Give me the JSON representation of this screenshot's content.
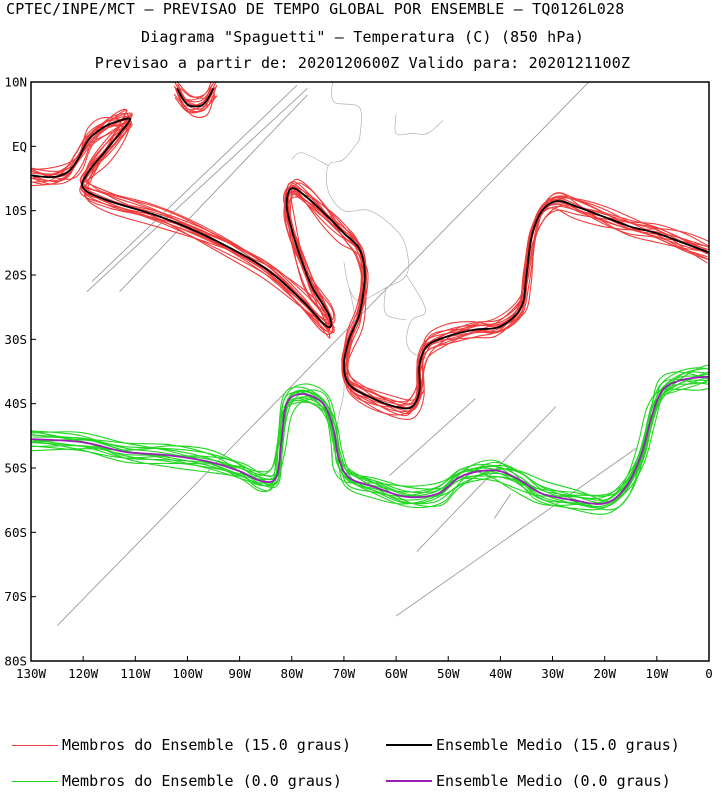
{
  "titles": {
    "line1": "CPTEC/INPE/MCT – PREVISAO DE TEMPO GLOBAL POR ENSEMBLE – TQ0126L028",
    "line2": "Diagrama \"Spaguetti\" – Temperatura (C) (850 hPa)",
    "line3": "Previsao a partir de: 2020120600Z  Valido para: 2020121100Z"
  },
  "colors": {
    "member_15": "#f03c3c",
    "mean_15": "#000000",
    "member_0": "#22d622",
    "mean_0": "#9a1fb8",
    "coast": "#9a9a9a"
  },
  "chart_data": {
    "type": "line",
    "title": "Diagrama \"Spaguetti\" – Temperatura (C) (850 hPa)",
    "xlim": [
      -130,
      0
    ],
    "ylim": [
      -80,
      10
    ],
    "x_ticks": [
      {
        "value": -130,
        "label": "130W"
      },
      {
        "value": -120,
        "label": "120W"
      },
      {
        "value": -110,
        "label": "110W"
      },
      {
        "value": -100,
        "label": "100W"
      },
      {
        "value": -90,
        "label": "90W"
      },
      {
        "value": -80,
        "label": "80W"
      },
      {
        "value": -70,
        "label": "70W"
      },
      {
        "value": -60,
        "label": "60W"
      },
      {
        "value": -50,
        "label": "50W"
      },
      {
        "value": -40,
        "label": "40W"
      },
      {
        "value": -30,
        "label": "30W"
      },
      {
        "value": -20,
        "label": "20W"
      },
      {
        "value": -10,
        "label": "10W"
      },
      {
        "value": 0,
        "label": "0"
      }
    ],
    "y_ticks": [
      {
        "value": 10,
        "label": "10N"
      },
      {
        "value": 0,
        "label": "EQ"
      },
      {
        "value": -10,
        "label": "10S"
      },
      {
        "value": -20,
        "label": "20S"
      },
      {
        "value": -30,
        "label": "30S"
      },
      {
        "value": -40,
        "label": "40S"
      },
      {
        "value": -50,
        "label": "50S"
      },
      {
        "value": -60,
        "label": "60S"
      },
      {
        "value": -70,
        "label": "70S"
      },
      {
        "value": -80,
        "label": "80S"
      }
    ],
    "series": [
      {
        "name": "Ensemble Medio (15.0 graus)",
        "style": "mean_15",
        "segments": [
          [
            [
              -130,
              -4.5
            ],
            [
              -126,
              -4.8
            ],
            [
              -123,
              -4
            ],
            [
              -121,
              -2
            ],
            [
              -119,
              1
            ],
            [
              -116,
              3
            ],
            [
              -113,
              4
            ],
            [
              -111,
              4.2
            ],
            [
              -113,
              2
            ],
            [
              -116,
              -1
            ],
            [
              -119,
              -4
            ],
            [
              -120,
              -6.5
            ],
            [
              -115,
              -8.5
            ],
            [
              -105,
              -11
            ],
            [
              -95,
              -14.5
            ],
            [
              -85,
              -19
            ],
            [
              -78,
              -24
            ],
            [
              -74,
              -27.5
            ],
            [
              -72.5,
              -28
            ],
            [
              -73,
              -26
            ],
            [
              -76,
              -22
            ],
            [
              -78,
              -18
            ],
            [
              -80,
              -13
            ],
            [
              -81,
              -9
            ],
            [
              -80,
              -6.5
            ],
            [
              -77,
              -8
            ],
            [
              -73,
              -11
            ],
            [
              -70,
              -13.5
            ],
            [
              -67,
              -16
            ],
            [
              -66,
              -20
            ],
            [
              -67,
              -26
            ],
            [
              -69,
              -30
            ],
            [
              -70,
              -34
            ],
            [
              -69,
              -37
            ],
            [
              -65,
              -39
            ],
            [
              -60,
              -40.5
            ],
            [
              -57,
              -40.5
            ],
            [
              -55.5,
              -38
            ],
            [
              -55.5,
              -34
            ],
            [
              -54,
              -31
            ],
            [
              -50,
              -29.5
            ],
            [
              -45,
              -28.5
            ],
            [
              -40,
              -28
            ],
            [
              -36,
              -25
            ],
            [
              -35,
              -20
            ],
            [
              -34,
              -14
            ],
            [
              -32,
              -10
            ],
            [
              -29,
              -8.5
            ],
            [
              -25,
              -9.5
            ],
            [
              -20,
              -11
            ],
            [
              -15,
              -12.5
            ],
            [
              -10,
              -13.5
            ],
            [
              -5,
              -15
            ],
            [
              0,
              -16.5
            ]
          ],
          [
            [
              -102,
              9
            ],
            [
              -100,
              6.5
            ],
            [
              -97,
              6.5
            ],
            [
              -95,
              9
            ]
          ]
        ]
      },
      {
        "name": "Ensemble Medio (0.0 graus)",
        "style": "mean_0",
        "segments": [
          [
            [
              -130,
              -45.5
            ],
            [
              -120,
              -46
            ],
            [
              -112,
              -47.5
            ],
            [
              -104,
              -48
            ],
            [
              -96,
              -49
            ],
            [
              -90,
              -50.5
            ],
            [
              -86,
              -52
            ],
            [
              -83,
              -51.5
            ],
            [
              -82,
              -46
            ],
            [
              -81,
              -40
            ],
            [
              -78,
              -38.5
            ],
            [
              -74,
              -40
            ],
            [
              -72,
              -44
            ],
            [
              -71,
              -48.5
            ],
            [
              -69,
              -51.5
            ],
            [
              -64,
              -53
            ],
            [
              -58,
              -54.5
            ],
            [
              -52,
              -54
            ],
            [
              -48,
              -51.5
            ],
            [
              -44,
              -50.5
            ],
            [
              -40,
              -50.5
            ],
            [
              -36,
              -52
            ],
            [
              -32,
              -54
            ],
            [
              -26,
              -55
            ],
            [
              -20,
              -55.5
            ],
            [
              -16,
              -53
            ],
            [
              -13,
              -48
            ],
            [
              -11,
              -42
            ],
            [
              -9,
              -38
            ],
            [
              -6,
              -36.5
            ],
            [
              -3,
              -36
            ],
            [
              0,
              -35.8
            ]
          ]
        ]
      }
    ]
  },
  "legend": [
    {
      "label": "Membros do Ensemble (15.0 graus)",
      "style": "member_15"
    },
    {
      "label": "Ensemble Medio (15.0 graus)",
      "style": "mean_15"
    },
    {
      "label": "Membros do Ensemble (0.0 graus)",
      "style": "member_0"
    },
    {
      "label": "Ensemble Medio (0.0 graus)",
      "style": "mean_0"
    }
  ]
}
